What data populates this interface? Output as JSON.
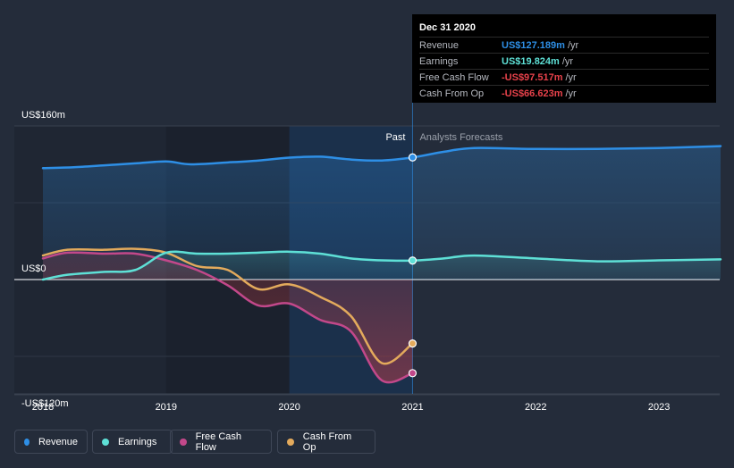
{
  "tooltip": {
    "date": "Dec 31 2020",
    "rows": [
      {
        "label": "Revenue",
        "value": "US$127.189m",
        "unit": "/yr",
        "color": "#2e8fe6"
      },
      {
        "label": "Earnings",
        "value": "US$19.824m",
        "unit": "/yr",
        "color": "#5ee0d6"
      },
      {
        "label": "Free Cash Flow",
        "value": "-US$97.517m",
        "unit": "/yr",
        "color": "#e8424b"
      },
      {
        "label": "Cash From Op",
        "value": "-US$66.623m",
        "unit": "/yr",
        "color": "#e8424b"
      }
    ]
  },
  "legend": [
    {
      "label": "Revenue",
      "color": "#2e8fe6"
    },
    {
      "label": "Earnings",
      "color": "#5ee0d6"
    },
    {
      "label": "Free Cash Flow",
      "color": "#c2488a"
    },
    {
      "label": "Cash From Op",
      "color": "#e3aa5c"
    }
  ],
  "chart_data": {
    "type": "line",
    "x_ticks": [
      "2018",
      "2019",
      "2020",
      "2021",
      "2022",
      "2023"
    ],
    "y_ticks": [
      {
        "value": 160,
        "label": "US$160m"
      },
      {
        "value": 0,
        "label": "US$0"
      },
      {
        "value": -120,
        "label": "-US$120m"
      }
    ],
    "ylim": [
      -120,
      160
    ],
    "xlim": [
      2018.0,
      2023.5
    ],
    "past_label": "Past",
    "forecast_label": "Analysts Forecasts",
    "split_x": 2021.0,
    "series": [
      {
        "name": "Revenue",
        "color": "#2e8fe6",
        "points": [
          [
            2018.0,
            116
          ],
          [
            2018.25,
            117
          ],
          [
            2018.5,
            119
          ],
          [
            2018.75,
            121
          ],
          [
            2019.0,
            123
          ],
          [
            2019.2,
            120
          ],
          [
            2019.5,
            122
          ],
          [
            2019.75,
            124
          ],
          [
            2020.0,
            127
          ],
          [
            2020.25,
            128
          ],
          [
            2020.5,
            125
          ],
          [
            2020.75,
            124
          ],
          [
            2021.0,
            127.2
          ],
          [
            2021.25,
            133
          ],
          [
            2021.5,
            137
          ],
          [
            2022.0,
            136
          ],
          [
            2022.5,
            136
          ],
          [
            2023.0,
            137
          ],
          [
            2023.5,
            139
          ]
        ]
      },
      {
        "name": "Earnings",
        "color": "#5ee0d6",
        "points": [
          [
            2018.0,
            0
          ],
          [
            2018.2,
            5
          ],
          [
            2018.5,
            8
          ],
          [
            2018.75,
            10
          ],
          [
            2019.0,
            28
          ],
          [
            2019.25,
            27
          ],
          [
            2019.5,
            27
          ],
          [
            2019.75,
            28
          ],
          [
            2020.0,
            29
          ],
          [
            2020.25,
            27
          ],
          [
            2020.5,
            22
          ],
          [
            2020.75,
            20
          ],
          [
            2021.0,
            19.8
          ],
          [
            2021.25,
            22
          ],
          [
            2021.5,
            25
          ],
          [
            2022.0,
            22
          ],
          [
            2022.5,
            19
          ],
          [
            2023.0,
            20
          ],
          [
            2023.5,
            21
          ]
        ]
      },
      {
        "name": "Free Cash Flow",
        "color": "#c2488a",
        "points": [
          [
            2018.0,
            22
          ],
          [
            2018.2,
            28
          ],
          [
            2018.5,
            27
          ],
          [
            2018.75,
            27
          ],
          [
            2019.0,
            20
          ],
          [
            2019.25,
            10
          ],
          [
            2019.5,
            -6
          ],
          [
            2019.75,
            -27
          ],
          [
            2020.0,
            -25
          ],
          [
            2020.25,
            -42
          ],
          [
            2020.5,
            -54
          ],
          [
            2020.75,
            -105
          ],
          [
            2021.0,
            -97.5
          ]
        ]
      },
      {
        "name": "Cash From Op",
        "color": "#e3aa5c",
        "points": [
          [
            2018.0,
            25
          ],
          [
            2018.2,
            31
          ],
          [
            2018.5,
            31
          ],
          [
            2018.75,
            32
          ],
          [
            2019.0,
            28
          ],
          [
            2019.25,
            14
          ],
          [
            2019.5,
            10
          ],
          [
            2019.75,
            -10
          ],
          [
            2020.0,
            -5
          ],
          [
            2020.25,
            -18
          ],
          [
            2020.5,
            -38
          ],
          [
            2020.75,
            -87
          ],
          [
            2021.0,
            -66.6
          ]
        ]
      }
    ]
  }
}
